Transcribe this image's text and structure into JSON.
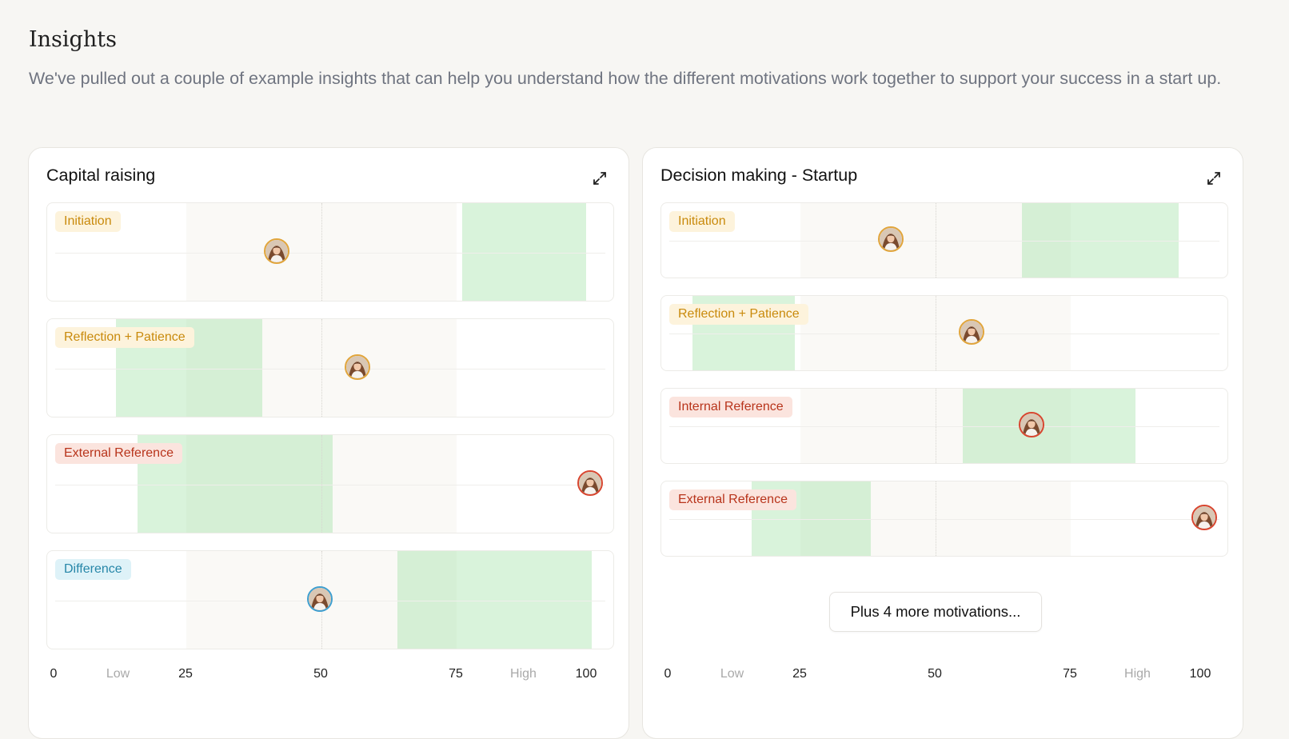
{
  "page": {
    "title": "Insights",
    "description": "We've pulled out a couple of example insights that can help you understand how the different motivations work together to support your success in a start up."
  },
  "colors": {
    "target_band": "#d8f2d9",
    "yellow_tag": "#c98a0c",
    "red_tag": "#b8341b",
    "blue_tag": "#2686a8"
  },
  "axis": {
    "ticks": [
      "0",
      "25",
      "50",
      "75",
      "100"
    ],
    "low_label": "Low",
    "high_label": "High"
  },
  "cards": [
    {
      "title": "Capital raising",
      "expand_icon": "expand-icon",
      "rows": [
        {
          "label": "Initiation",
          "tone": "yellow",
          "score": 42,
          "target": [
            76,
            99
          ]
        },
        {
          "label": "Reflection + Patience",
          "tone": "yellow",
          "score": 57,
          "target": [
            12,
            39
          ]
        },
        {
          "label": "External Reference",
          "tone": "red",
          "score": 100,
          "target": [
            16,
            52
          ]
        },
        {
          "label": "Difference",
          "tone": "blue",
          "score": 50,
          "target": [
            64,
            100
          ]
        }
      ]
    },
    {
      "title": "Decision making - Startup",
      "expand_icon": "expand-icon",
      "rows": [
        {
          "label": "Initiation",
          "tone": "yellow",
          "score": 42,
          "target": [
            66,
            95
          ]
        },
        {
          "label": "Reflection + Patience",
          "tone": "yellow",
          "score": 57,
          "target": [
            5,
            24
          ]
        },
        {
          "label": "Internal Reference",
          "tone": "red",
          "score": 68,
          "target": [
            55,
            87
          ]
        },
        {
          "label": "External Reference",
          "tone": "red",
          "score": 100,
          "target": [
            16,
            38
          ]
        }
      ],
      "more_button": "Plus 4 more motivations..."
    }
  ]
}
